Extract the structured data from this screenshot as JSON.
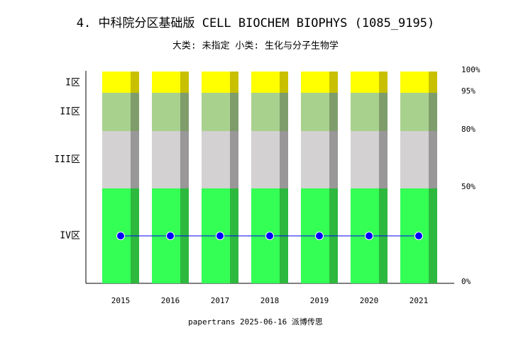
{
  "chart_data": {
    "type": "bar",
    "title": "4. 中科院分区基础版 CELL BIOCHEM BIOPHYS (1085_9195)",
    "subtitle": "大类: 未指定 小类: 生化与分子生物学",
    "footer": "papertrans 2025-06-16 派博传思",
    "categories": [
      "2015",
      "2016",
      "2017",
      "2018",
      "2019",
      "2020",
      "2021"
    ],
    "series": [
      {
        "name": "IV区",
        "color": "#33ff55",
        "shade": "#2db83e",
        "values": [
          50,
          50,
          50,
          50,
          50,
          50,
          50
        ]
      },
      {
        "name": "III区",
        "color": "#d3d1d1",
        "shade": "#999797",
        "values": [
          30,
          30,
          30,
          30,
          30,
          30,
          30
        ]
      },
      {
        "name": "II区",
        "color": "#a9d18e",
        "shade": "#7f9d6b",
        "values": [
          15,
          15,
          15,
          15,
          15,
          15,
          15
        ]
      },
      {
        "name": "I区",
        "color": "#ffff00",
        "shade": "#c8c000",
        "values": [
          5,
          5,
          5,
          5,
          5,
          5,
          5
        ]
      }
    ],
    "line": {
      "color": "#0000ff",
      "values": [
        25,
        25,
        25,
        25,
        25,
        25,
        25
      ]
    },
    "ylim": [
      0,
      100
    ],
    "yticks": [
      {
        "value": 0,
        "label": "0%"
      },
      {
        "value": 50,
        "label": "50%"
      },
      {
        "value": 80,
        "label": "80%"
      },
      {
        "value": 95,
        "label": "95%"
      },
      {
        "value": 100,
        "label": "100%"
      }
    ],
    "grid": false
  }
}
